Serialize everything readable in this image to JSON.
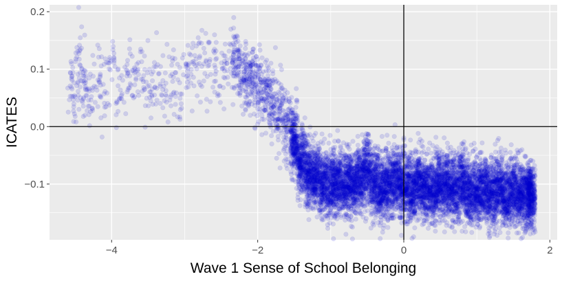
{
  "chart_data": {
    "type": "scatter",
    "title": "",
    "xlabel": "Wave 1 Sense of School Belonging",
    "ylabel": "ICATES",
    "xlim": [
      -4.85,
      2.1
    ],
    "ylim": [
      -0.197,
      0.212
    ],
    "x_ticks": [
      -4,
      -2,
      0,
      2
    ],
    "x_tick_labels": [
      "−4",
      "−2",
      "0",
      "2"
    ],
    "y_ticks": [
      -0.1,
      0.0,
      0.1,
      0.2
    ],
    "y_tick_labels": [
      "−0.1",
      "0.0",
      "0.1",
      "0.2"
    ],
    "grid": true,
    "reference_lines": {
      "x": 0,
      "y": 0
    },
    "point_color": "#0000CD",
    "point_alpha": 0.13,
    "panel_background": "#EBEBEB",
    "gridline_color": "#FFFFFF",
    "series": [
      {
        "x": [
          -4.55,
          -4.5,
          -4.45,
          -4.4,
          -4.35,
          -4.3,
          -4.2,
          -4.1,
          -4.0,
          -3.9,
          -3.8,
          -3.7,
          -3.6,
          -3.5,
          -3.4,
          -3.3,
          -3.2,
          -3.1,
          -3.0,
          -2.9,
          -2.8,
          -2.7,
          -2.6,
          -2.5,
          -2.4,
          -2.3,
          -2.2,
          -2.1,
          -2.0,
          -1.9,
          -1.8,
          -1.7,
          -1.6,
          -1.5,
          -1.4,
          -1.3,
          -1.2,
          -1.1,
          -1.0,
          -0.9,
          -0.8,
          -0.7,
          -0.6,
          -0.5,
          -0.4,
          -0.3,
          -0.2,
          -0.1,
          0.0,
          0.1,
          0.2,
          0.3,
          0.4,
          0.5,
          0.6,
          0.7,
          0.8,
          0.9,
          1.0,
          1.1,
          1.2,
          1.3,
          1.4,
          1.5,
          1.6,
          1.7,
          1.75
        ],
        "y": [
          0.07,
          0.065,
          0.12,
          0.075,
          0.06,
          0.05,
          0.08,
          0.06,
          0.11,
          0.07,
          0.09,
          0.08,
          0.1,
          0.07,
          0.09,
          0.06,
          0.08,
          0.07,
          0.09,
          0.1,
          0.11,
          0.12,
          0.1,
          0.09,
          0.12,
          0.11,
          0.09,
          0.08,
          0.07,
          0.06,
          0.04,
          0.02,
          0.0,
          -0.03,
          -0.06,
          -0.08,
          -0.09,
          -0.095,
          -0.1,
          -0.1,
          -0.105,
          -0.1,
          -0.09,
          -0.08,
          -0.1,
          -0.11,
          -0.1,
          -0.09,
          -0.1,
          -0.11,
          -0.1,
          -0.105,
          -0.11,
          -0.1,
          -0.105,
          -0.11,
          -0.1,
          -0.11,
          -0.115,
          -0.11,
          -0.12,
          -0.11,
          -0.12,
          -0.115,
          -0.12,
          -0.115,
          -0.12
        ]
      }
    ]
  }
}
